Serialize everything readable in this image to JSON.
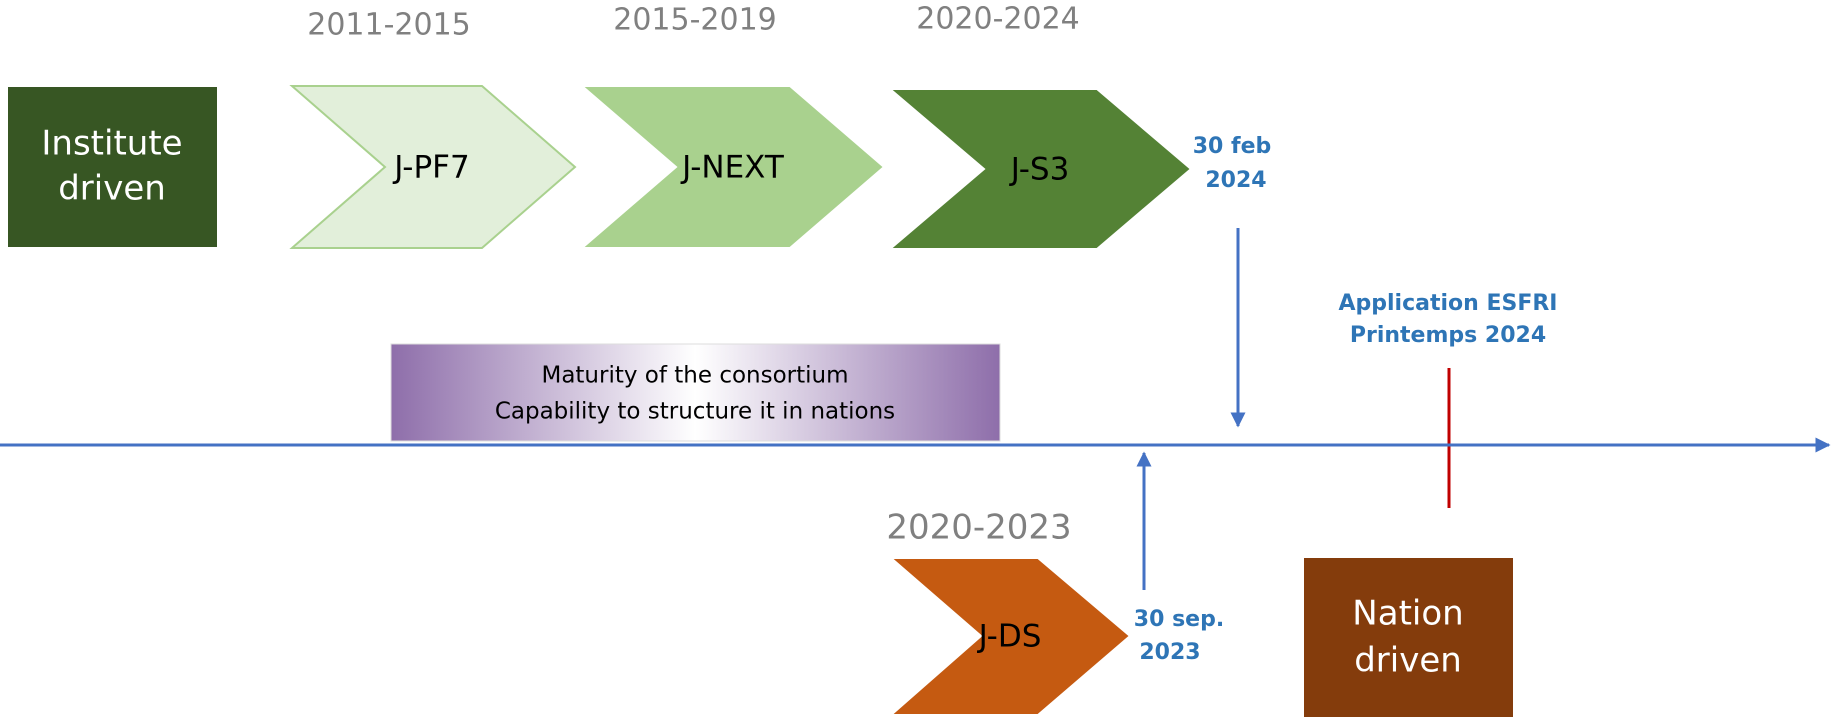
{
  "phases": [
    {
      "period": "2011-2015",
      "label": "J-PF7"
    },
    {
      "period": "2015-2019",
      "label": "J-NEXT"
    },
    {
      "period": "2020-2024",
      "label": "J-S3"
    }
  ],
  "start_box": {
    "lines": [
      "Institute",
      "driven"
    ]
  },
  "end_box": {
    "lines": [
      "Nation",
      "driven"
    ]
  },
  "milestone_top": {
    "lines": [
      "30 feb",
      "2024"
    ]
  },
  "milestone_bottom": {
    "lines": [
      "30  sep.",
      "2023"
    ]
  },
  "application": {
    "lines": [
      "Application  ESFRI",
      "Printemps  2024"
    ]
  },
  "maturity": {
    "lines": [
      "Maturity of the consortium",
      "Capability to structure it in nations"
    ]
  },
  "lower_phase": {
    "period": "2020-2023",
    "label": "J-DS"
  }
}
